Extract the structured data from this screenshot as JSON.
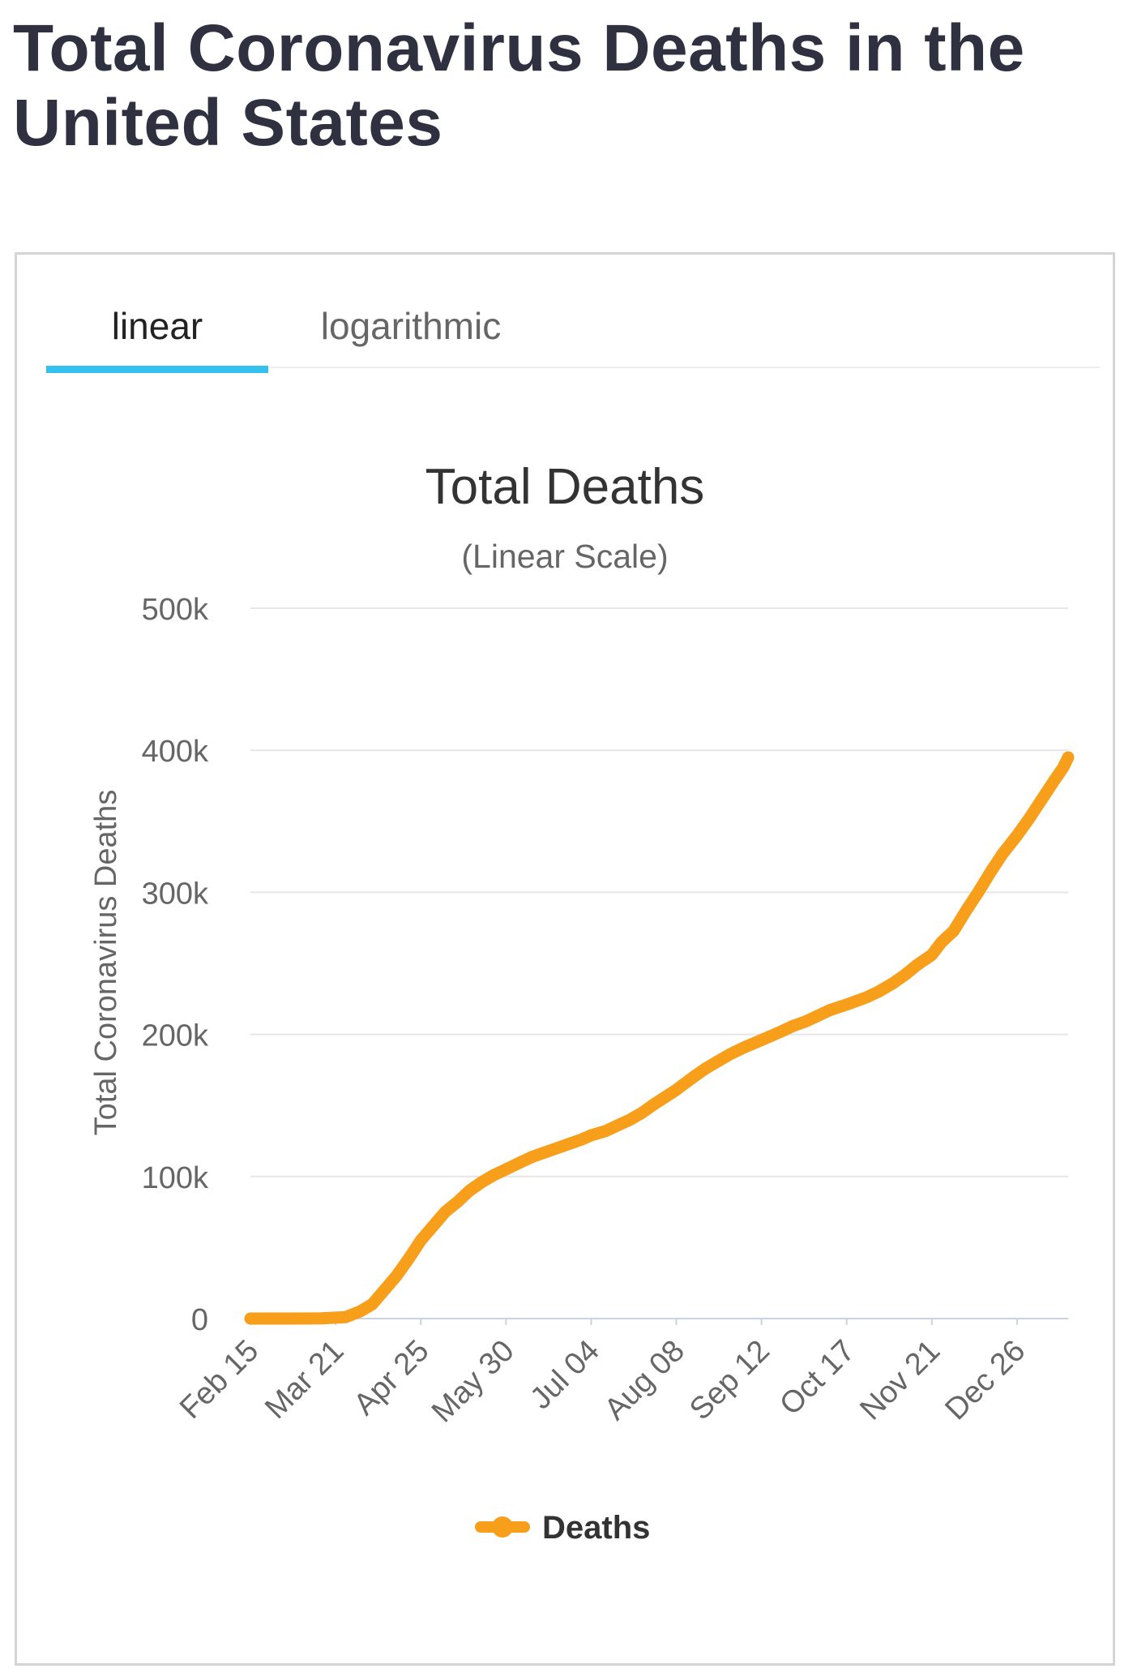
{
  "page": {
    "title": "Total Coronavirus Deaths in the United States"
  },
  "tabs": [
    {
      "label": "linear",
      "active": true
    },
    {
      "label": "logarithmic",
      "active": false
    }
  ],
  "colors": {
    "series": "#f79e1b",
    "tab_indicator": "#35c1ee",
    "grid": "#e6e6e6",
    "axis": "#c9d3e6"
  },
  "chart_data": {
    "type": "line",
    "title": "Total Deaths",
    "subtitle": "(Linear Scale)",
    "ylabel": "Total Coronavirus Deaths",
    "xlabel": "",
    "ylim": [
      0,
      500000
    ],
    "y_ticks": [
      0,
      100000,
      200000,
      300000,
      400000,
      500000
    ],
    "y_tick_labels": [
      "0",
      "100k",
      "200k",
      "300k",
      "400k",
      "500k"
    ],
    "x_tick_labels": [
      "Feb 15",
      "Mar 21",
      "Apr 25",
      "May 30",
      "Jul 04",
      "Aug 08",
      "Sep 12",
      "Oct 17",
      "Nov 21",
      "Dec 26"
    ],
    "x_tick_dates": [
      "2020-02-15",
      "2020-03-21",
      "2020-04-25",
      "2020-05-30",
      "2020-07-04",
      "2020-08-08",
      "2020-09-12",
      "2020-10-17",
      "2020-11-21",
      "2020-12-26"
    ],
    "grid": true,
    "legend": {
      "position": "bottom-center"
    },
    "series": [
      {
        "name": "Deaths",
        "x": [
          "2020-02-15",
          "2020-03-01",
          "2020-03-15",
          "2020-03-25",
          "2020-03-31",
          "2020-04-05",
          "2020-04-10",
          "2020-04-15",
          "2020-04-20",
          "2020-04-25",
          "2020-04-30",
          "2020-05-05",
          "2020-05-10",
          "2020-05-15",
          "2020-05-20",
          "2020-05-25",
          "2020-05-30",
          "2020-06-05",
          "2020-06-10",
          "2020-06-15",
          "2020-06-20",
          "2020-06-25",
          "2020-06-30",
          "2020-07-04",
          "2020-07-10",
          "2020-07-15",
          "2020-07-20",
          "2020-07-25",
          "2020-07-30",
          "2020-08-08",
          "2020-08-15",
          "2020-08-20",
          "2020-08-25",
          "2020-08-30",
          "2020-09-05",
          "2020-09-12",
          "2020-09-20",
          "2020-09-25",
          "2020-09-30",
          "2020-10-05",
          "2020-10-10",
          "2020-10-17",
          "2020-10-25",
          "2020-10-30",
          "2020-11-05",
          "2020-11-10",
          "2020-11-15",
          "2020-11-21",
          "2020-11-25",
          "2020-11-30",
          "2020-12-05",
          "2020-12-10",
          "2020-12-15",
          "2020-12-20",
          "2020-12-26",
          "2020-12-31",
          "2021-01-05",
          "2021-01-10",
          "2021-01-14",
          "2021-01-16"
        ],
        "y": [
          0,
          1,
          100,
          1000,
          5000,
          10000,
          20000,
          30000,
          42000,
          55000,
          65000,
          75000,
          82000,
          90000,
          96000,
          101000,
          105000,
          110000,
          114000,
          117000,
          120000,
          123000,
          126000,
          129000,
          132000,
          136000,
          140000,
          145000,
          151000,
          161000,
          170000,
          176000,
          181000,
          186000,
          191000,
          196000,
          202000,
          206000,
          209000,
          213000,
          217000,
          221000,
          226000,
          230000,
          236000,
          242000,
          249000,
          256000,
          265000,
          273000,
          287000,
          300000,
          314000,
          327000,
          340000,
          352000,
          365000,
          378000,
          388000,
          395000
        ]
      }
    ]
  }
}
